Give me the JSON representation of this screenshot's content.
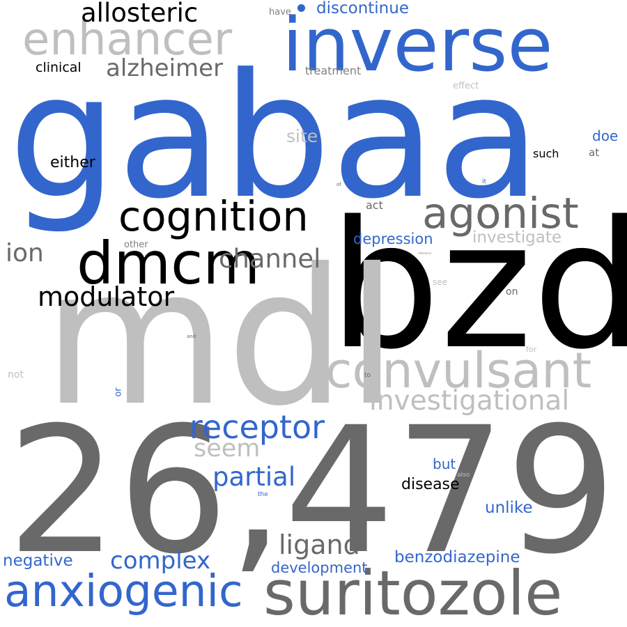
{
  "colors": {
    "background": "#ffffff",
    "blue": "#3366cc",
    "black": "#000000",
    "dark_gray": "#696969",
    "mid_gray": "#808080",
    "light_gray": "#bfbfbf"
  },
  "words": [
    {
      "text": "gabaa",
      "color": "blue"
    },
    {
      "text": "bzd",
      "color": "black"
    },
    {
      "text": "mdl",
      "color": "light_gray"
    },
    {
      "text": "26,479",
      "color": "dark_gray"
    },
    {
      "text": "inverse",
      "color": "blue"
    },
    {
      "text": "suritozole",
      "color": "dark_gray"
    },
    {
      "text": "dmcm",
      "color": "black"
    },
    {
      "text": "convulsant",
      "color": "light_gray"
    },
    {
      "text": "enhancer",
      "color": "light_gray"
    },
    {
      "text": "cognition",
      "color": "black"
    },
    {
      "text": "agonist",
      "color": "dark_gray"
    },
    {
      "text": "anxiogenic",
      "color": "blue"
    },
    {
      "text": "allosteric",
      "color": "black"
    },
    {
      "text": "receptor",
      "color": "blue"
    },
    {
      "text": "investigational",
      "color": "light_gray"
    },
    {
      "text": "modulator",
      "color": "black"
    },
    {
      "text": "alzheimer",
      "color": "dark_gray"
    },
    {
      "text": "ligand",
      "color": "dark_gray"
    },
    {
      "text": "partial",
      "color": "blue"
    },
    {
      "text": "channel",
      "color": "dark_gray"
    },
    {
      "text": "complex",
      "color": "blue"
    },
    {
      "text": "ion",
      "color": "dark_gray"
    },
    {
      "text": "seem",
      "color": "light_gray"
    },
    {
      "text": "benzodiazepine",
      "color": "blue"
    },
    {
      "text": "negative",
      "color": "blue"
    },
    {
      "text": "discontinue",
      "color": "blue"
    },
    {
      "text": "development",
      "color": "blue"
    },
    {
      "text": "investigate",
      "color": "light_gray"
    },
    {
      "text": "depression",
      "color": "blue"
    },
    {
      "text": "unlike",
      "color": "blue"
    },
    {
      "text": "disease",
      "color": "black"
    },
    {
      "text": "site",
      "color": "light_gray"
    },
    {
      "text": "either",
      "color": "black"
    },
    {
      "text": "clinical",
      "color": "black"
    },
    {
      "text": "doe",
      "color": "blue"
    },
    {
      "text": "but",
      "color": "blue"
    },
    {
      "text": "treatment",
      "color": "mid_gray"
    },
    {
      "text": "such",
      "color": "black"
    },
    {
      "text": "act",
      "color": "dark_gray"
    },
    {
      "text": "have",
      "color": "mid_gray"
    },
    {
      "text": "effect",
      "color": "light_gray"
    },
    {
      "text": "at",
      "color": "dark_gray"
    },
    {
      "text": "other",
      "color": "mid_gray"
    },
    {
      "text": "not",
      "color": "light_gray"
    },
    {
      "text": "on",
      "color": "dark_gray"
    },
    {
      "text": "see",
      "color": "light_gray"
    },
    {
      "text": "or",
      "color": "blue"
    },
    {
      "text": "for",
      "color": "light_gray"
    },
    {
      "text": "to",
      "color": "dark_gray"
    },
    {
      "text": "also",
      "color": "light_gray"
    },
    {
      "text": "the",
      "color": "blue"
    },
    {
      "text": "it",
      "color": "blue"
    },
    {
      "text": "of",
      "color": "dark_gray"
    },
    {
      "text": "and",
      "color": "dark_gray"
    },
    {
      "text": "reference",
      "color": "mid_gray"
    }
  ]
}
